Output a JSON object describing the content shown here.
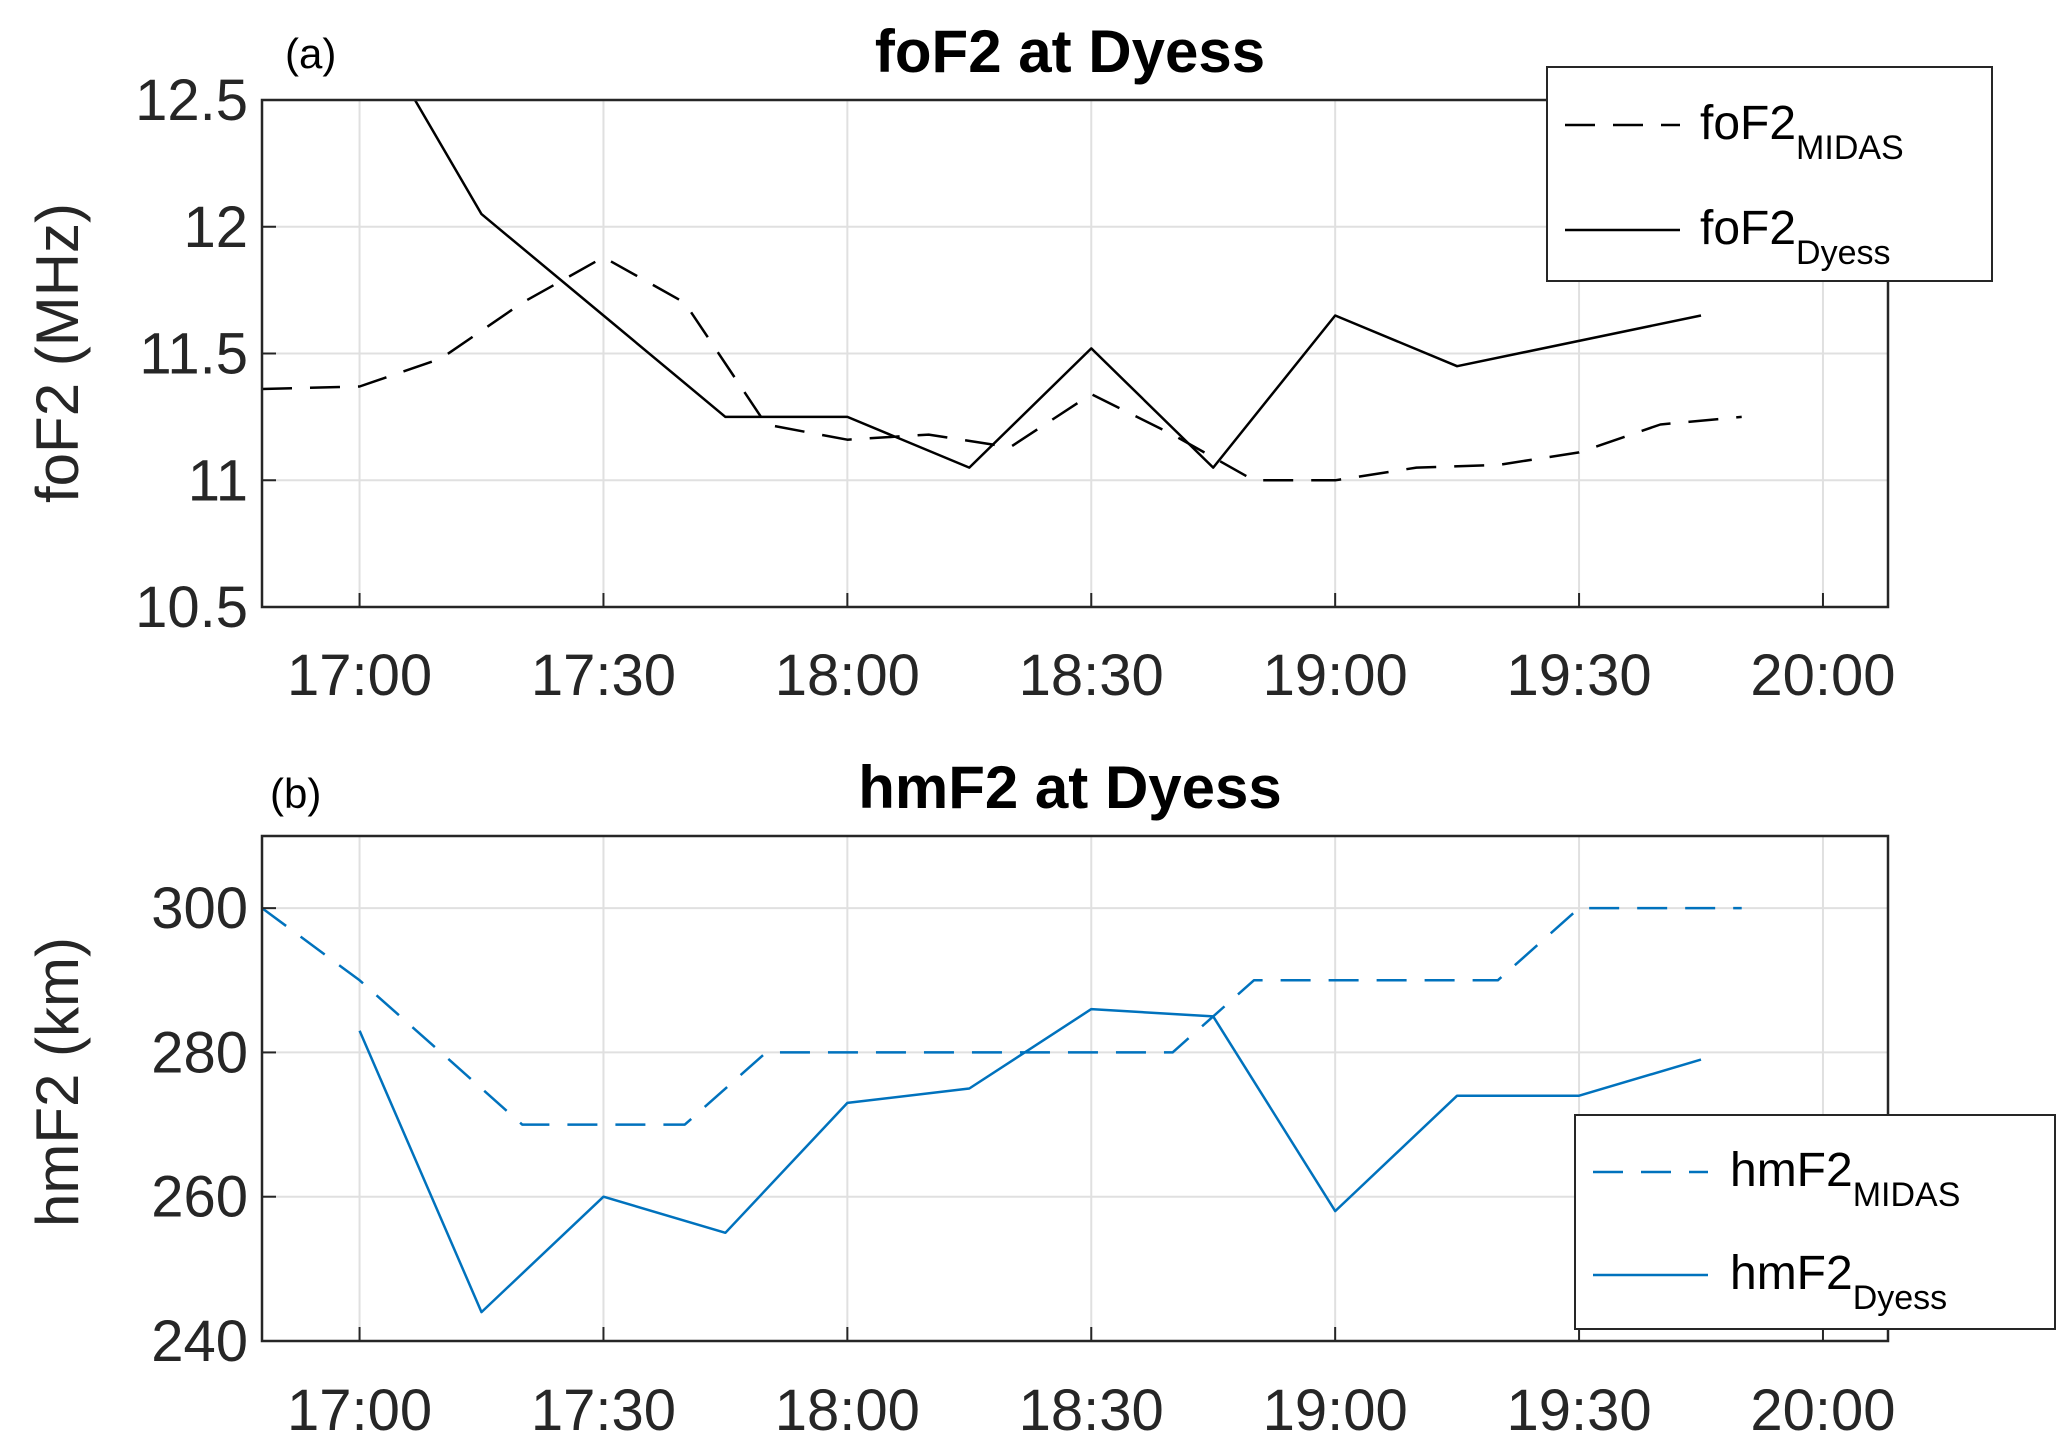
{
  "colors": {
    "panel_a_series": "#000000",
    "panel_b_series": "#0072BD",
    "grid": "#e0e0e0",
    "axis": "#262626"
  },
  "chart_data": [
    {
      "type": "line",
      "panel_label": "(a)",
      "title": "foF2 at Dyess",
      "xlabel": "",
      "ylabel": "foF2 (MHz)",
      "xlim": [
        "16:48",
        "20:08"
      ],
      "ylim": [
        10.5,
        12.5
      ],
      "x_ticks": [
        "17:00",
        "17:30",
        "18:00",
        "18:30",
        "19:00",
        "19:30",
        "20:00"
      ],
      "y_ticks": [
        "10.5",
        "11",
        "11.5",
        "12",
        "12.5"
      ],
      "grid": true,
      "legend_position": "top-right",
      "series": [
        {
          "name": "foF2",
          "name_sub": "MIDAS",
          "style": "dashed",
          "x": [
            "16:48",
            "17:00",
            "17:10",
            "17:20",
            "17:30",
            "17:40",
            "17:50",
            "18:00",
            "18:10",
            "18:20",
            "18:30",
            "18:40",
            "18:50",
            "19:00",
            "19:10",
            "19:20",
            "19:30",
            "19:40",
            "19:50"
          ],
          "y": [
            11.36,
            11.37,
            11.48,
            11.7,
            11.88,
            11.7,
            11.22,
            11.16,
            11.18,
            11.13,
            11.34,
            11.18,
            11.0,
            11.0,
            11.05,
            11.06,
            11.11,
            11.22,
            11.25
          ]
        },
        {
          "name": "foF2",
          "name_sub": "Dyess",
          "style": "solid",
          "x": [
            "17:05",
            "17:15",
            "17:30",
            "17:45",
            "18:00",
            "18:15",
            "18:30",
            "18:45",
            "19:00",
            "19:15",
            "19:45"
          ],
          "y": [
            12.6,
            12.05,
            11.65,
            11.25,
            11.25,
            11.05,
            11.52,
            11.05,
            11.65,
            11.45,
            11.65
          ]
        }
      ]
    },
    {
      "type": "line",
      "panel_label": "(b)",
      "title": "hmF2 at Dyess",
      "xlabel": "",
      "ylabel": "hmF2 (km)",
      "xlim": [
        "16:48",
        "20:08"
      ],
      "ylim": [
        240,
        310
      ],
      "x_ticks": [
        "17:00",
        "17:30",
        "18:00",
        "18:30",
        "19:00",
        "19:30",
        "20:00"
      ],
      "y_ticks": [
        "240",
        "260",
        "280",
        "300"
      ],
      "grid": true,
      "legend_position": "bottom-right",
      "series": [
        {
          "name": "hmF2",
          "name_sub": "MIDAS",
          "style": "dashed",
          "x": [
            "16:48",
            "17:00",
            "17:10",
            "17:20",
            "17:30",
            "17:40",
            "17:50",
            "18:00",
            "18:10",
            "18:20",
            "18:30",
            "18:40",
            "18:50",
            "19:00",
            "19:10",
            "19:20",
            "19:30",
            "19:40",
            "19:50"
          ],
          "y": [
            300,
            290,
            280,
            270,
            270,
            270,
            280,
            280,
            280,
            280,
            280,
            280,
            290,
            290,
            290,
            290,
            300,
            300,
            300
          ]
        },
        {
          "name": "hmF2",
          "name_sub": "Dyess",
          "style": "solid",
          "x": [
            "17:00",
            "17:15",
            "17:30",
            "17:45",
            "18:00",
            "18:15",
            "18:30",
            "18:45",
            "19:00",
            "19:15",
            "19:30",
            "19:45"
          ],
          "y": [
            283,
            244,
            260,
            255,
            273,
            275,
            286,
            285,
            258,
            274,
            274,
            279
          ]
        }
      ]
    }
  ]
}
